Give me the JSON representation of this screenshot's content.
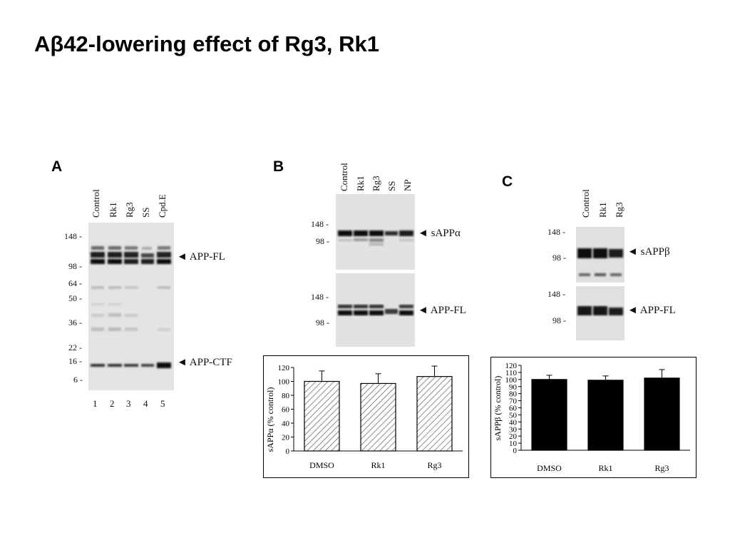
{
  "title": {
    "prefix": "A",
    "beta": "β",
    "suffix": "42-lowering effect of Rg3, Rk1"
  },
  "panels": {
    "a": {
      "letter": "A",
      "lanes": [
        "Control",
        "Rk1",
        "Rg3",
        "SS",
        "Cpd.E"
      ],
      "lane_numbers": [
        "1",
        "2",
        "3",
        "4",
        "5"
      ],
      "markers": [
        "148 -",
        "98 -",
        "64 -",
        "50 -",
        "36 -",
        "22 -",
        "16 -",
        "6 -"
      ],
      "band_labels": {
        "app_fl": "APP-FL",
        "app_ctf": "APP-CTF"
      }
    },
    "b": {
      "letter": "B",
      "lanes": [
        "Control",
        "Rk1",
        "Rg3",
        "SS",
        "NP"
      ],
      "blot1_markers": [
        "148 -",
        "98 -"
      ],
      "blot1_label": "sAPPα",
      "blot2_markers": [
        "148 -",
        "98 -"
      ],
      "blot2_label": "APP-FL"
    },
    "c": {
      "letter": "C",
      "lanes": [
        "Control",
        "Rk1",
        "Rg3"
      ],
      "blot1_markers": [
        "148 -",
        "98 -"
      ],
      "blot1_label": "sAPPβ",
      "blot2_markers": [
        "148 -",
        "98 -"
      ],
      "blot2_label": "APP-FL"
    }
  },
  "chart_data": [
    {
      "type": "bar",
      "categories": [
        "DMSO",
        "Rk1",
        "Rg3"
      ],
      "values": [
        100,
        97,
        107
      ],
      "errors": [
        15,
        14,
        15
      ],
      "ylabel": "sAPPα (% control)",
      "ylim": [
        0,
        120
      ],
      "yticks": [
        "0",
        "20",
        "40",
        "60",
        "80",
        "100",
        "120"
      ],
      "fill": "hatched",
      "color": "#ffffff"
    },
    {
      "type": "bar",
      "categories": [
        "DMSO",
        "Rk1",
        "Rg3"
      ],
      "values": [
        100,
        99,
        102
      ],
      "errors": [
        6,
        6,
        12
      ],
      "ylabel": "sAPPβ (% control)",
      "ylim": [
        0,
        120
      ],
      "yticks": [
        "0",
        "10",
        "20",
        "30",
        "40",
        "50",
        "60",
        "70",
        "80",
        "90",
        "100",
        "110",
        "120"
      ],
      "fill": "solid",
      "color": "#000000"
    }
  ]
}
